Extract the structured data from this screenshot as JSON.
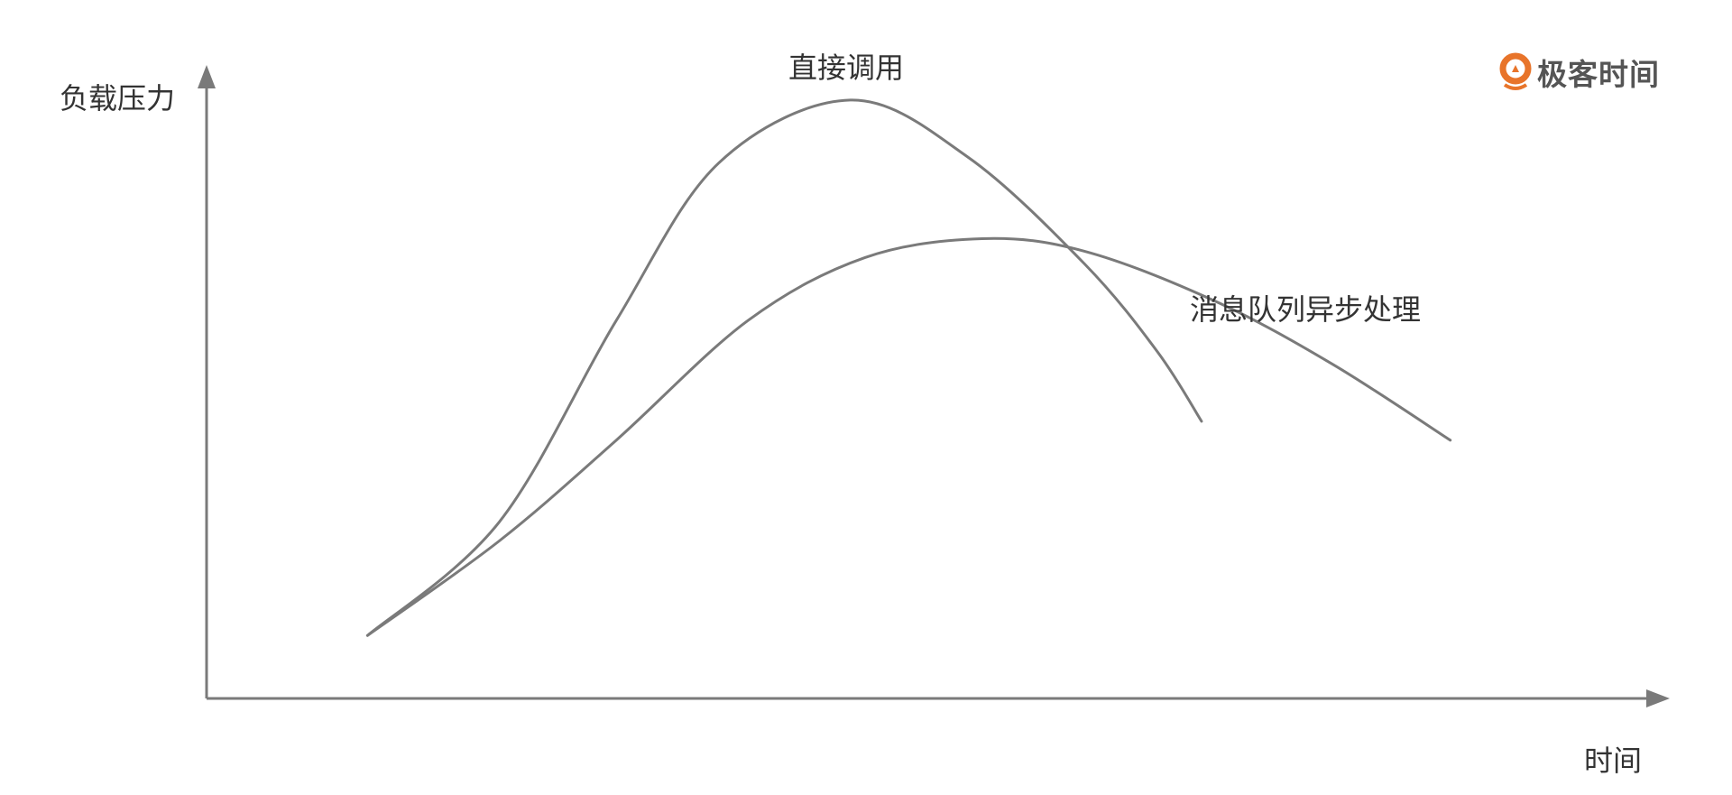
{
  "logo": {
    "text": "极客时间",
    "color": "#e8742a"
  },
  "chart_data": {
    "type": "line",
    "title": "",
    "xlabel": "时间",
    "ylabel": "负载压力",
    "xlim": [
      0,
      10
    ],
    "ylim": [
      0,
      10
    ],
    "grid": false,
    "ticks": false,
    "line_color": "#7a7a7a",
    "series": [
      {
        "name": "直接调用",
        "x": [
          1.1,
          2.0,
          2.8,
          3.5,
          4.4,
          5.2,
          6.0,
          6.5,
          6.8
        ],
        "y": [
          1.0,
          2.8,
          6.0,
          8.5,
          9.5,
          8.6,
          6.9,
          5.5,
          4.4
        ]
      },
      {
        "name": "消息队列异步处理",
        "x": [
          1.1,
          2.0,
          2.8,
          3.7,
          4.5,
          5.3,
          6.0,
          6.9,
          7.7,
          8.5
        ],
        "y": [
          1.0,
          2.5,
          4.1,
          6.0,
          7.0,
          7.3,
          7.1,
          6.3,
          5.3,
          4.1
        ]
      }
    ]
  }
}
